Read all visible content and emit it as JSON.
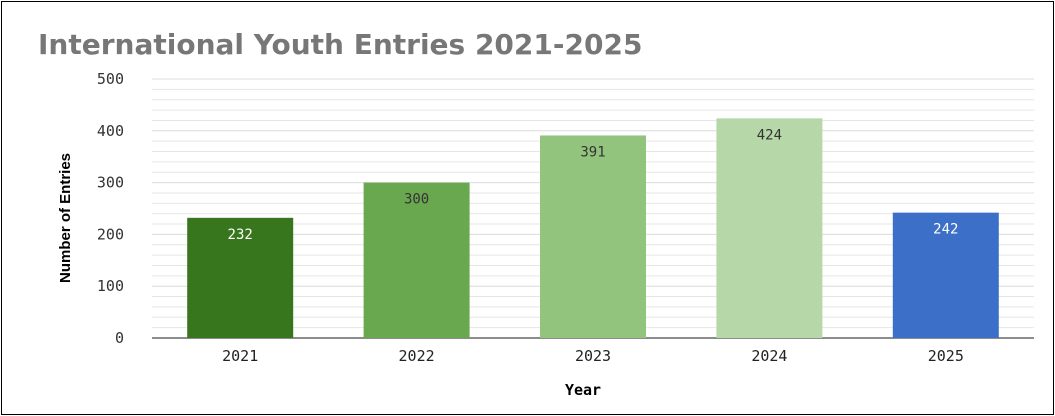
{
  "chart_data": {
    "type": "bar",
    "title": "International Youth Entries 2021-2025",
    "xlabel": "Year",
    "ylabel": "Number of Entries",
    "categories": [
      "2021",
      "2022",
      "2023",
      "2024",
      "2025"
    ],
    "values": [
      232,
      300,
      391,
      424,
      242
    ],
    "value_labels": [
      "232",
      "300",
      "391",
      "424",
      "242"
    ],
    "ylim": [
      0,
      500
    ],
    "yticks": [
      0,
      100,
      200,
      300,
      400,
      500
    ],
    "ytick_labels": [
      "0",
      "100",
      "200",
      "300",
      "400",
      "500"
    ],
    "grid": true,
    "legend": "none",
    "bar_colors": [
      "#38761d",
      "#6aa84f",
      "#93c47d",
      "#b6d7a8",
      "#3c6fc7"
    ],
    "label_colors": [
      "#ffffff",
      "#333333",
      "#333333",
      "#333333",
      "#ffffff"
    ],
    "grid_color": "#e6e6e6",
    "axis_color": "#666666"
  }
}
